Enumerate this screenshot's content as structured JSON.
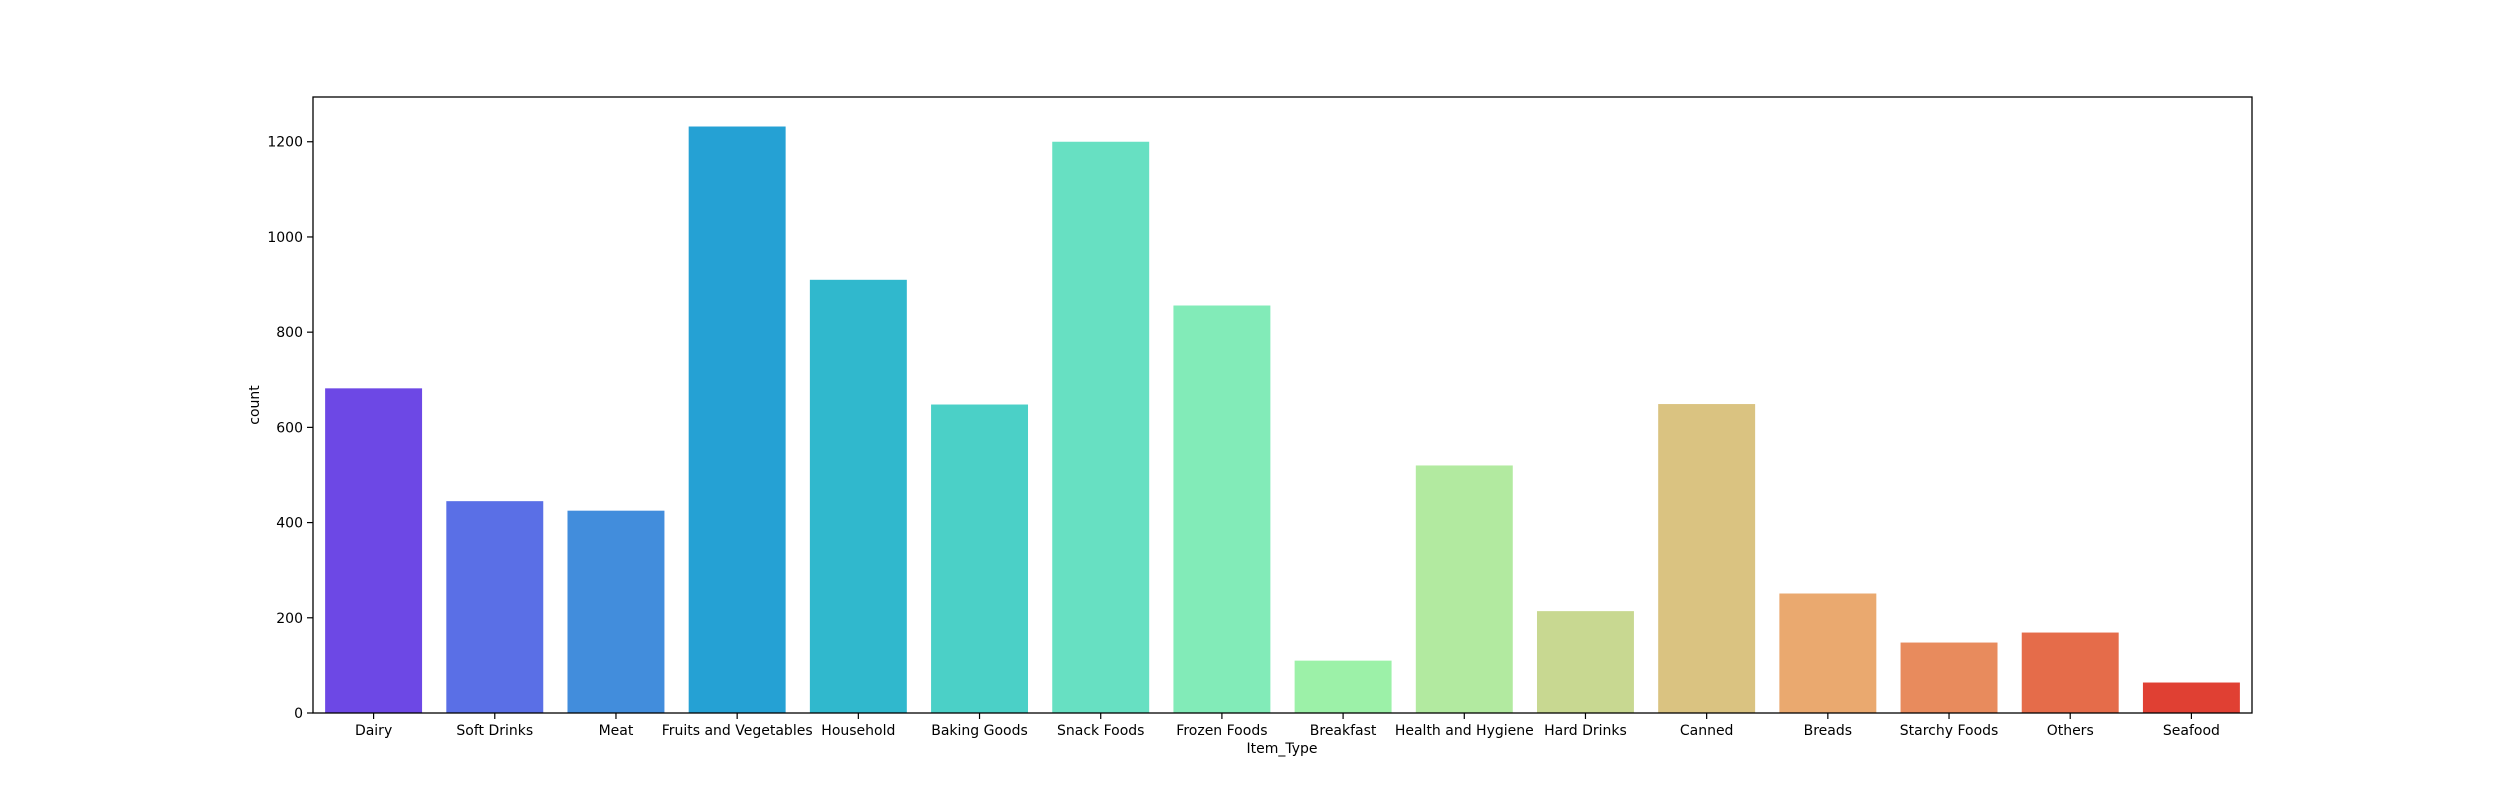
{
  "chart_data": {
    "type": "bar",
    "categories": [
      "Dairy",
      "Soft Drinks",
      "Meat",
      "Fruits and Vegetables",
      "Household",
      "Baking Goods",
      "Snack Foods",
      "Frozen Foods",
      "Breakfast",
      "Health and Hygiene",
      "Hard Drinks",
      "Canned",
      "Breads",
      "Starchy Foods",
      "Others",
      "Seafood"
    ],
    "values": [
      682,
      445,
      425,
      1232,
      910,
      648,
      1200,
      856,
      110,
      520,
      214,
      649,
      251,
      148,
      169,
      64
    ],
    "colors": [
      "#6d48e5",
      "#5a6fe6",
      "#428ddc",
      "#25a1d4",
      "#30b8cd",
      "#4bd0c7",
      "#67e0c2",
      "#82ebb8",
      "#9cf1a8",
      "#b2eaa0",
      "#c8d891",
      "#dac381",
      "#eaa96f",
      "#e88b5d",
      "#e56c4a",
      "#e04033"
    ],
    "title": "",
    "xlabel": "Item_Type",
    "ylabel": "count",
    "ylim": [
      0,
      1294
    ],
    "yticks": [
      0,
      200,
      400,
      600,
      800,
      1000,
      1200
    ],
    "grid": false,
    "legend": "none"
  }
}
